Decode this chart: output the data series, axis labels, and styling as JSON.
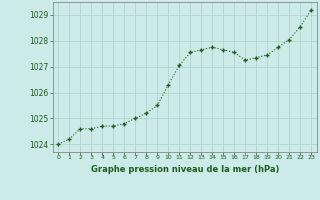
{
  "x": [
    0,
    1,
    2,
    3,
    4,
    5,
    6,
    7,
    8,
    9,
    10,
    11,
    12,
    13,
    14,
    15,
    16,
    17,
    18,
    19,
    20,
    21,
    22,
    23
  ],
  "y": [
    1024.0,
    1024.2,
    1024.6,
    1024.6,
    1024.7,
    1024.7,
    1024.8,
    1025.0,
    1025.2,
    1025.5,
    1026.3,
    1027.05,
    1027.55,
    1027.65,
    1027.75,
    1027.65,
    1027.55,
    1027.25,
    1027.35,
    1027.45,
    1027.75,
    1028.05,
    1028.55,
    1029.2
  ],
  "line_color": "#1f5c1f",
  "marker_color": "#1f5c1f",
  "bg_color": "#cceae8",
  "grid_color": "#aad0cc",
  "xlabel": "Graphe pression niveau de la mer (hPa)",
  "xlabel_color": "#1f5c1f",
  "tick_color": "#1f5c1f",
  "axis_color": "#888888",
  "ylim": [
    1023.7,
    1029.5
  ],
  "yticks": [
    1024,
    1025,
    1026,
    1027,
    1028,
    1029
  ],
  "xticks": [
    0,
    1,
    2,
    3,
    4,
    5,
    6,
    7,
    8,
    9,
    10,
    11,
    12,
    13,
    14,
    15,
    16,
    17,
    18,
    19,
    20,
    21,
    22,
    23
  ]
}
